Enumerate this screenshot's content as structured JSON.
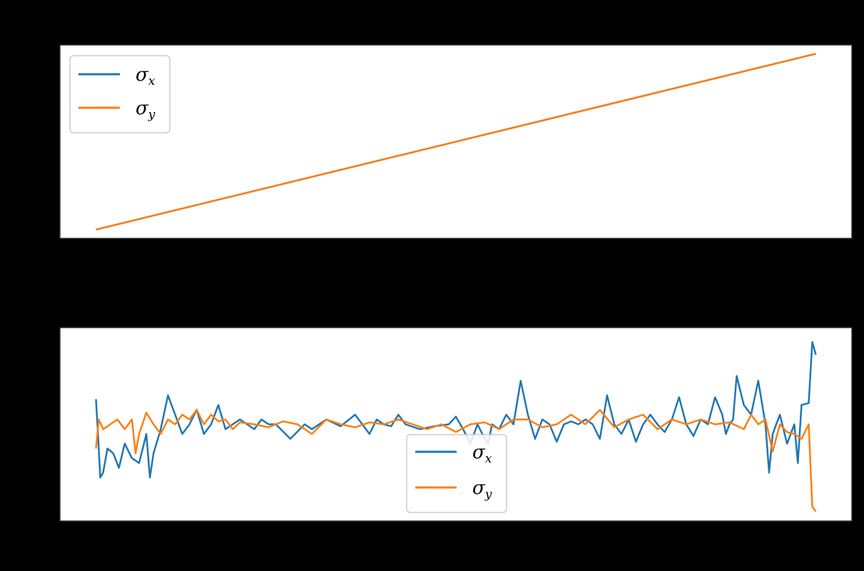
{
  "figure": {
    "background": "#000000",
    "axes_facecolor": "#ffffff",
    "frame_color": "#333333"
  },
  "colors": {
    "sigma_x": "#1f77b4",
    "sigma_y": "#ff7f0e",
    "legend_border": "#cccccc"
  },
  "chart_data": [
    {
      "type": "line",
      "title": "",
      "xlabel": "",
      "ylabel": "",
      "grid": false,
      "legend": {
        "placement": "upper-left",
        "entries": [
          {
            "symbol": "σ",
            "subscript": "x"
          },
          {
            "symbol": "σ",
            "subscript": "y"
          }
        ]
      },
      "xlim": [
        -0.05,
        1.05
      ],
      "ylim": [
        -0.05,
        1.05
      ],
      "series": [
        {
          "key": "sigma_x",
          "color": "#1f77b4",
          "x": [
            0,
            1
          ],
          "y": [
            0,
            1
          ]
        },
        {
          "key": "sigma_y",
          "color": "#ff7f0e",
          "x": [
            0,
            1
          ],
          "y": [
            0,
            1
          ]
        }
      ]
    },
    {
      "type": "line",
      "title": "",
      "xlabel": "",
      "ylabel": "",
      "grid": false,
      "legend": {
        "placement": "lower-center",
        "entries": [
          {
            "symbol": "σ",
            "subscript": "x"
          },
          {
            "symbol": "σ",
            "subscript": "y"
          }
        ]
      },
      "xlim": [
        -0.05,
        1.05
      ],
      "ylim": [
        -1.0,
        1.0
      ],
      "series": [
        {
          "key": "sigma_x",
          "color": "#1f77b4",
          "x": [
            0,
            0.003,
            0.006,
            0.01,
            0.016,
            0.024,
            0.032,
            0.04,
            0.05,
            0.06,
            0.07,
            0.075,
            0.08,
            0.09,
            0.1,
            0.11,
            0.12,
            0.13,
            0.14,
            0.15,
            0.16,
            0.17,
            0.18,
            0.19,
            0.2,
            0.21,
            0.22,
            0.23,
            0.24,
            0.25,
            0.27,
            0.29,
            0.3,
            0.32,
            0.34,
            0.36,
            0.37,
            0.38,
            0.39,
            0.4,
            0.41,
            0.42,
            0.43,
            0.45,
            0.47,
            0.49,
            0.5,
            0.51,
            0.52,
            0.53,
            0.54,
            0.545,
            0.55,
            0.56,
            0.57,
            0.58,
            0.59,
            0.6,
            0.61,
            0.62,
            0.63,
            0.64,
            0.65,
            0.66,
            0.67,
            0.68,
            0.69,
            0.7,
            0.71,
            0.72,
            0.73,
            0.74,
            0.75,
            0.76,
            0.77,
            0.78,
            0.79,
            0.8,
            0.81,
            0.82,
            0.83,
            0.84,
            0.85,
            0.86,
            0.87,
            0.875,
            0.88,
            0.885,
            0.89,
            0.9,
            0.91,
            0.92,
            0.93,
            0.935,
            0.94,
            0.95,
            0.96,
            0.97,
            0.975,
            0.98,
            0.99,
            0.995,
            1.0
          ],
          "y": [
            0.26,
            -0.12,
            -0.55,
            -0.5,
            -0.25,
            -0.3,
            -0.45,
            -0.2,
            -0.35,
            -0.4,
            -0.1,
            -0.55,
            -0.3,
            -0.05,
            0.3,
            0.1,
            -0.1,
            0.0,
            0.15,
            -0.1,
            0.0,
            0.2,
            -0.05,
            0.0,
            0.05,
            0.0,
            -0.05,
            0.05,
            0.0,
            0.0,
            -0.15,
            0.0,
            -0.05,
            0.05,
            -0.02,
            0.1,
            0.0,
            -0.1,
            0.05,
            0.0,
            -0.02,
            0.1,
            0.0,
            -0.05,
            -0.02,
            0.0,
            0.08,
            -0.05,
            -0.2,
            0.0,
            -0.15,
            -0.2,
            0.0,
            -0.05,
            0.1,
            0.0,
            0.45,
            0.1,
            -0.15,
            0.05,
            0.0,
            -0.18,
            0.0,
            0.03,
            0.0,
            0.05,
            0.0,
            -0.15,
            0.3,
            0.0,
            -0.1,
            0.05,
            -0.18,
            0.0,
            0.1,
            0.0,
            -0.08,
            0.05,
            0.28,
            0.0,
            -0.12,
            0.05,
            0.0,
            0.28,
            0.1,
            -0.1,
            0.0,
            0.05,
            0.5,
            0.2,
            0.1,
            0.45,
            0.0,
            -0.5,
            -0.1,
            0.1,
            -0.2,
            0.0,
            -0.4,
            0.2,
            0.22,
            0.85,
            0.72
          ]
        },
        {
          "key": "sigma_y",
          "color": "#ff7f0e",
          "x": [
            0,
            0.004,
            0.01,
            0.02,
            0.03,
            0.04,
            0.05,
            0.055,
            0.06,
            0.07,
            0.08,
            0.09,
            0.1,
            0.11,
            0.12,
            0.13,
            0.14,
            0.15,
            0.16,
            0.17,
            0.18,
            0.19,
            0.2,
            0.22,
            0.24,
            0.26,
            0.28,
            0.3,
            0.32,
            0.34,
            0.36,
            0.38,
            0.4,
            0.42,
            0.44,
            0.46,
            0.48,
            0.5,
            0.52,
            0.54,
            0.56,
            0.58,
            0.6,
            0.62,
            0.64,
            0.66,
            0.68,
            0.7,
            0.72,
            0.74,
            0.76,
            0.78,
            0.8,
            0.82,
            0.84,
            0.86,
            0.88,
            0.9,
            0.91,
            0.92,
            0.93,
            0.94,
            0.95,
            0.96,
            0.97,
            0.98,
            0.99,
            0.995,
            1.0
          ],
          "y": [
            -0.25,
            0.05,
            -0.05,
            0.0,
            0.05,
            -0.05,
            0.05,
            -0.3,
            -0.1,
            0.12,
            0.0,
            -0.1,
            0.05,
            0.0,
            0.1,
            0.05,
            0.15,
            0.0,
            0.1,
            0.03,
            0.05,
            -0.05,
            0.02,
            0.0,
            -0.03,
            0.03,
            0.0,
            -0.1,
            0.05,
            0.0,
            -0.03,
            0.02,
            0.0,
            0.05,
            0.0,
            -0.05,
            0.0,
            -0.08,
            0.0,
            0.02,
            -0.05,
            0.05,
            0.05,
            -0.03,
            0.0,
            0.1,
            0.0,
            0.15,
            -0.03,
            0.05,
            0.1,
            -0.05,
            0.05,
            0.0,
            0.05,
            0.0,
            0.02,
            -0.05,
            0.1,
            0.0,
            0.05,
            -0.28,
            0.0,
            -0.08,
            -0.1,
            -0.15,
            0.0,
            -0.85,
            -0.9
          ]
        }
      ]
    }
  ]
}
